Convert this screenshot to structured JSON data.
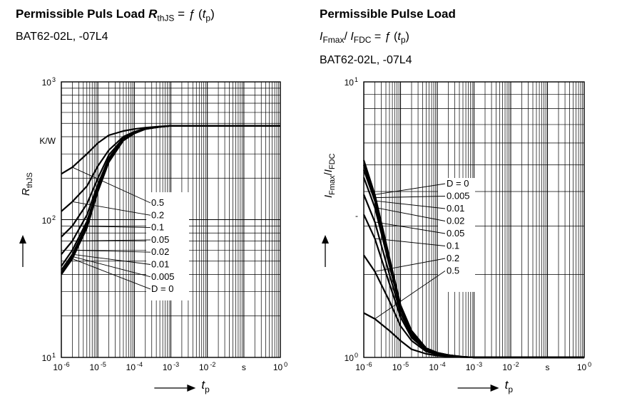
{
  "chart_data": [
    {
      "type": "line",
      "title": {
        "lead": "Permissible Puls Load",
        "symbol": "R",
        "symbol_sub": "thJS",
        "rest": " = ",
        "func": "ƒ",
        "arg": "t",
        "arg_sub": "p"
      },
      "subtitle": "BAT62-02L, -07L4",
      "xlabel": {
        "symbol": "t",
        "sub": "p"
      },
      "ylabel": {
        "symbol": "R",
        "sub": "thJS"
      },
      "x_axis": {
        "scale": "log",
        "range": [
          1e-06,
          1
        ],
        "ticks": [
          {
            "base": "10",
            "exp": "-6"
          },
          {
            "base": "10",
            "exp": "-5"
          },
          {
            "base": "10",
            "exp": "-4"
          },
          {
            "base": "10",
            "exp": "-3"
          },
          {
            "base": "10",
            "exp": "-2"
          },
          {
            "base": "s",
            "exp": ""
          },
          {
            "base": "10",
            "exp": "0"
          }
        ]
      },
      "y_axis": {
        "scale": "log",
        "range": [
          10,
          1000
        ],
        "ticks": [
          {
            "base": "10",
            "exp": "3"
          },
          {
            "base": "K/W",
            "exp": ""
          },
          {
            "base": "10",
            "exp": "2"
          },
          {
            "base": "10",
            "exp": "1"
          }
        ]
      },
      "legend": {
        "placement": "center-right",
        "entries": [
          "0.5",
          "0.2",
          "0.1",
          "0.05",
          "0.02",
          "0.01",
          "0.005",
          "D = 0"
        ]
      },
      "x": [
        1e-06,
        2e-06,
        5e-06,
        1e-05,
        2e-05,
        5e-05,
        0.0001,
        0.0002,
        0.0005,
        0.001,
        0.01,
        0.1,
        1
      ],
      "series": [
        {
          "name": "0.5",
          "values": [
            215,
            240,
            300,
            360,
            410,
            440,
            455,
            465,
            475,
            480,
            480,
            480,
            480
          ]
        },
        {
          "name": "0.2",
          "values": [
            115,
            135,
            175,
            245,
            320,
            400,
            435,
            460,
            472,
            480,
            480,
            480,
            480
          ]
        },
        {
          "name": "0.1",
          "values": [
            75,
            90,
            130,
            200,
            295,
            390,
            430,
            458,
            472,
            480,
            480,
            480,
            480
          ]
        },
        {
          "name": "0.05",
          "values": [
            56,
            70,
            108,
            180,
            280,
            385,
            428,
            457,
            472,
            480,
            480,
            480,
            480
          ]
        },
        {
          "name": "0.02",
          "values": [
            46,
            60,
            97,
            170,
            272,
            380,
            425,
            456,
            472,
            480,
            480,
            480,
            480
          ]
        },
        {
          "name": "0.01",
          "values": [
            43,
            56,
            92,
            165,
            268,
            378,
            424,
            455,
            472,
            480,
            480,
            480,
            480
          ]
        },
        {
          "name": "0.005",
          "values": [
            41,
            54,
            89,
            162,
            265,
            376,
            423,
            455,
            472,
            480,
            480,
            480,
            480
          ]
        },
        {
          "name": "D = 0",
          "values": [
            40,
            52,
            87,
            160,
            262,
            375,
            422,
            454,
            472,
            480,
            480,
            480,
            480
          ]
        }
      ]
    },
    {
      "type": "line",
      "title": {
        "lead": "Permissible Pulse Load"
      },
      "formula": {
        "a": "I",
        "a_sub": "Fmax",
        "sep": "/ ",
        "b": "I",
        "b_sub": "FDC",
        "rest": " = ",
        "func": "ƒ",
        "arg": "t",
        "arg_sub": "p"
      },
      "subtitle": "BAT62-02L, -07L4",
      "xlabel": {
        "symbol": "t",
        "sub": "p"
      },
      "ylabel": {
        "a": "I",
        "a_sub": "Fmax",
        "sep": "/",
        "b": "I",
        "b_sub": "FDC"
      },
      "x_axis": {
        "scale": "log",
        "range": [
          1e-06,
          1
        ],
        "ticks": [
          {
            "base": "10",
            "exp": "-6"
          },
          {
            "base": "10",
            "exp": "-5"
          },
          {
            "base": "10",
            "exp": "-4"
          },
          {
            "base": "10",
            "exp": "-3"
          },
          {
            "base": "10",
            "exp": "-2"
          },
          {
            "base": "s",
            "exp": ""
          },
          {
            "base": "10",
            "exp": "0"
          }
        ]
      },
      "y_axis": {
        "scale": "log",
        "range": [
          1,
          10
        ],
        "ticks": [
          {
            "base": "10",
            "exp": "1"
          },
          {
            "base": "-",
            "exp": ""
          },
          {
            "base": "10",
            "exp": "0"
          }
        ]
      },
      "legend": {
        "placement": "center-right",
        "entries": [
          "D = 0",
          "0.005",
          "0.01",
          "0.02",
          "0.05",
          "0.1",
          "0.2",
          "0.5"
        ]
      },
      "x": [
        1e-06,
        2e-06,
        5e-06,
        1e-05,
        2e-05,
        5e-05,
        0.0001,
        0.0002,
        0.0005,
        0.001,
        0.01,
        0.1,
        1
      ],
      "series": [
        {
          "name": "D = 0",
          "values": [
            5.2,
            3.9,
            2.3,
            1.55,
            1.25,
            1.08,
            1.04,
            1.02,
            1.005,
            1,
            1,
            1,
            1
          ]
        },
        {
          "name": "0.005",
          "values": [
            5.0,
            3.8,
            2.25,
            1.53,
            1.24,
            1.08,
            1.04,
            1.02,
            1.005,
            1,
            1,
            1,
            1
          ]
        },
        {
          "name": "0.01",
          "values": [
            4.8,
            3.7,
            2.2,
            1.52,
            1.23,
            1.08,
            1.04,
            1.02,
            1.005,
            1,
            1,
            1,
            1
          ]
        },
        {
          "name": "0.02",
          "values": [
            4.5,
            3.5,
            2.15,
            1.5,
            1.22,
            1.08,
            1.04,
            1.02,
            1.005,
            1,
            1,
            1,
            1
          ]
        },
        {
          "name": "0.05",
          "values": [
            3.9,
            3.1,
            2.0,
            1.45,
            1.2,
            1.07,
            1.035,
            1.015,
            1.005,
            1,
            1,
            1,
            1
          ]
        },
        {
          "name": "0.1",
          "values": [
            3.3,
            2.7,
            1.85,
            1.4,
            1.18,
            1.06,
            1.03,
            1.015,
            1.005,
            1,
            1,
            1,
            1
          ]
        },
        {
          "name": "0.2",
          "values": [
            2.35,
            2.05,
            1.6,
            1.3,
            1.15,
            1.05,
            1.025,
            1.01,
            1.004,
            1,
            1,
            1,
            1
          ]
        },
        {
          "name": "0.5",
          "values": [
            1.45,
            1.38,
            1.25,
            1.15,
            1.07,
            1.03,
            1.015,
            1.007,
            1.002,
            1,
            1,
            1,
            1
          ]
        }
      ]
    }
  ]
}
